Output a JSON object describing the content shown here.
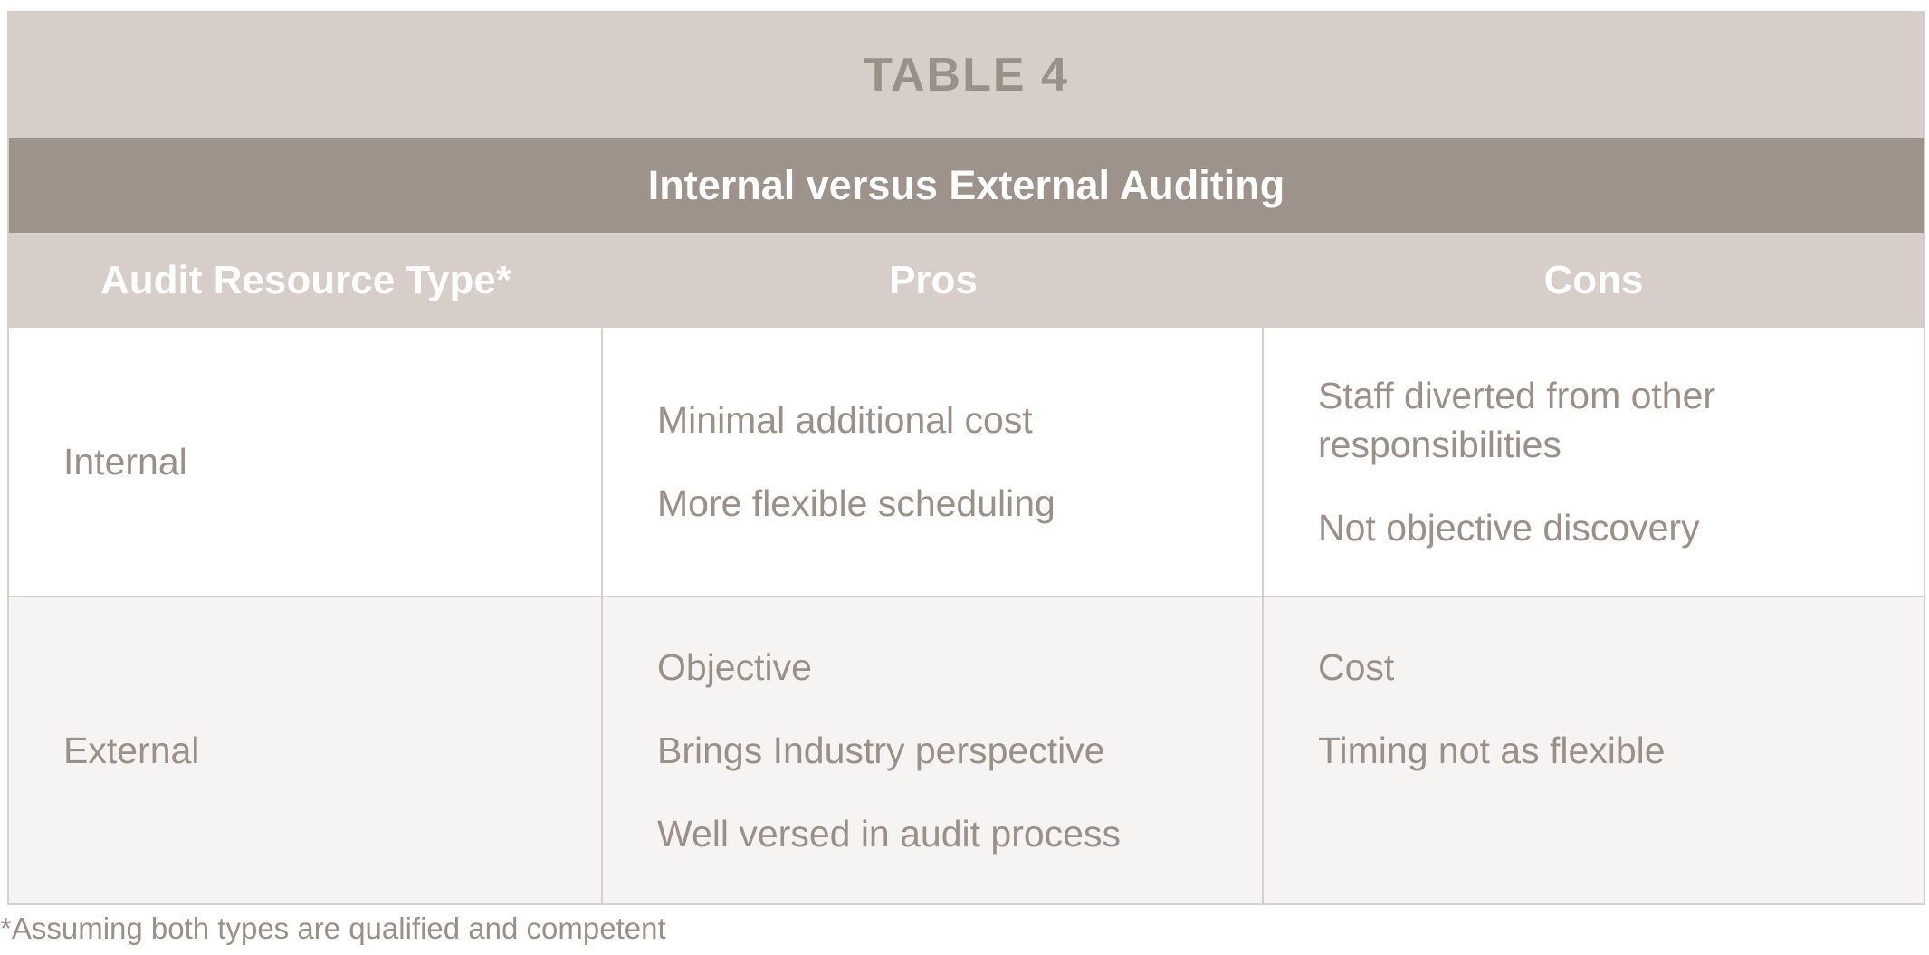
{
  "table": {
    "title": "TABLE 4",
    "subtitle": "Internal versus External Auditing",
    "headers": [
      "Audit Resource Type*",
      "Pros",
      "Cons"
    ],
    "rows": [
      {
        "type": "Internal",
        "pros": [
          "Minimal additional cost",
          "More flexible scheduling"
        ],
        "cons": [
          "Staff diverted from other responsibilities",
          "Not objective discovery"
        ]
      },
      {
        "type": "External",
        "pros": [
          "Objective",
          "Brings Industry perspective",
          "Well versed in audit process"
        ],
        "cons": [
          "Cost",
          "Timing not as flexible"
        ]
      }
    ]
  },
  "footnote": "*Assuming both types are qualified and competent",
  "colors": {
    "band_light": "#d7cdc9",
    "band_dark": "#9d938a",
    "text": "#9a9088",
    "row_alt": "#f5f4f2"
  }
}
